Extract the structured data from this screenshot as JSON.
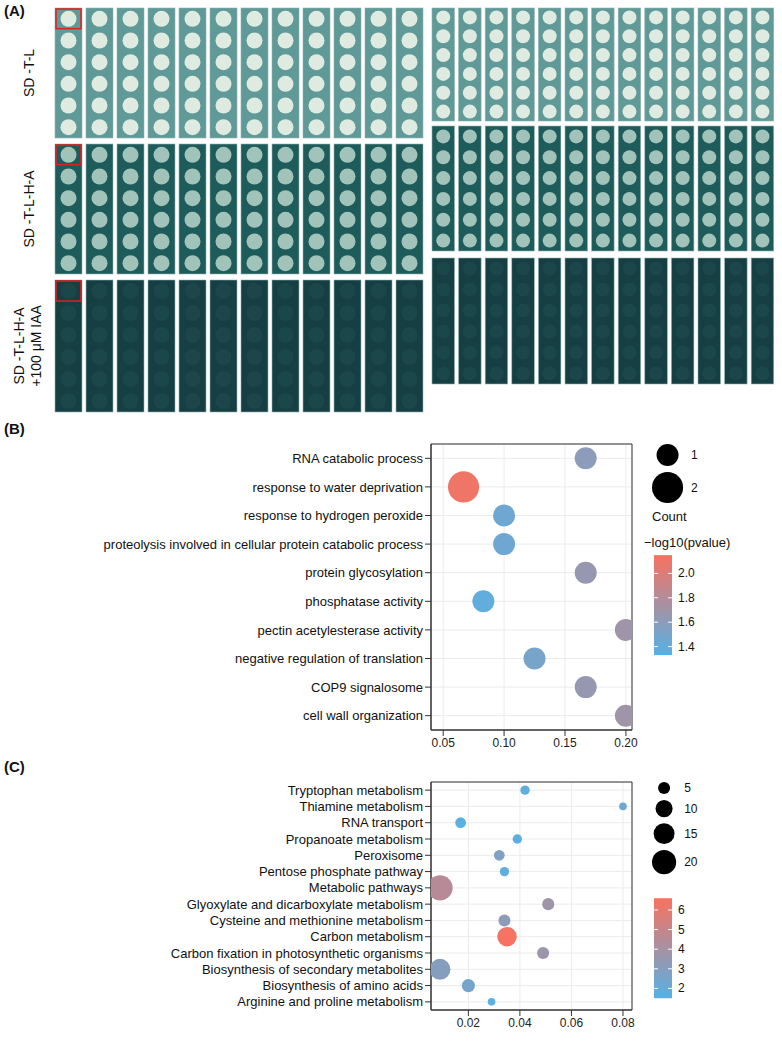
{
  "panel_a": {
    "panel": "(A)",
    "type": "image",
    "row_labels": [
      [
        "SD -T-L"
      ],
      [
        "SD -T-L-H-A"
      ],
      [
        "SD -T-L-H-A",
        "+100 μM IAA"
      ]
    ]
  },
  "chart_data": [
    {
      "panel": "(B)",
      "type": "scatter",
      "grid": true,
      "categories": [
        "RNA catabolic process",
        "response to water deprivation",
        "response to hydrogen peroxide",
        "proteolysis involved in cellular protein catabolic process",
        "protein glycosylation",
        "phosphatase activity",
        "pectin acetylesterase activity",
        "negative regulation of translation",
        "COP9 signalosome",
        "cell wall organization"
      ],
      "values": [
        0.167,
        0.0667,
        0.1,
        0.1,
        0.167,
        0.083,
        0.2,
        0.125,
        0.167,
        0.2
      ],
      "count": [
        1,
        2,
        1,
        1,
        1,
        1,
        1,
        1,
        1,
        1
      ],
      "neg_log10_pvalue": [
        1.6,
        2.1,
        1.45,
        1.45,
        1.65,
        1.38,
        1.7,
        1.5,
        1.65,
        1.7
      ],
      "xlim": [
        0.04,
        0.205
      ],
      "xticks": [
        0.05,
        {
          "value": 0.1,
          "label": "0.10"
        },
        0.15,
        {
          "value": 0.2,
          "label": "0.20"
        }
      ],
      "size_legend": {
        "title": "Count",
        "values": [
          1,
          2
        ]
      },
      "color_bar": {
        "title": "−log10(pvalue)",
        "range": [
          1.33,
          2.15
        ],
        "ticks": [
          {
            "value": 2,
            "label": "2.0"
          },
          1.8,
          1.6,
          1.4
        ],
        "colors": [
          "#56B1E6",
          "#F9715F"
        ]
      }
    },
    {
      "panel": "(C)",
      "type": "scatter",
      "grid": true,
      "categories": [
        "Tryptophan metabolism",
        "Thiamine metabolism",
        "RNA transport",
        "Propanoate metabolism",
        "Peroxisome",
        "Pentose phosphate pathway",
        "Metabolic pathways",
        "Glyoxylate and dicarboxylate metabolism",
        "Cysteine and methionine metabolism",
        "Carbon metabolism",
        "Carbon fixation in photosynthetic organisms",
        "Biosynthesis of secondary metabolites",
        "Biosynthesis of amino acids",
        "Arginine and proline metabolism"
      ],
      "values": [
        0.042,
        0.08,
        0.017,
        0.039,
        0.032,
        0.034,
        0.009,
        0.051,
        0.034,
        0.035,
        0.049,
        0.009,
        0.02,
        0.029
      ],
      "count": [
        3,
        2,
        4,
        3,
        4,
        3,
        22,
        5,
        5,
        13,
        5,
        15,
        6,
        2
      ],
      "neg_log10_pvalue": [
        1.8,
        2.2,
        1.6,
        1.7,
        2.8,
        1.8,
        4.5,
        3.8,
        3.2,
        6.5,
        3.7,
        3.0,
        2.5,
        1.6
      ],
      "xlim": [
        0.0055,
        0.0835
      ],
      "xticks": [
        0.02,
        0.04,
        0.06,
        0.08
      ],
      "size_legend": {
        "values": [
          5,
          10,
          15,
          20
        ]
      },
      "color_bar": {
        "range": [
          1.5,
          6.6
        ],
        "ticks": [
          6,
          5,
          4,
          3,
          2
        ],
        "colors": [
          "#56B1E6",
          "#F9715F"
        ]
      }
    }
  ]
}
